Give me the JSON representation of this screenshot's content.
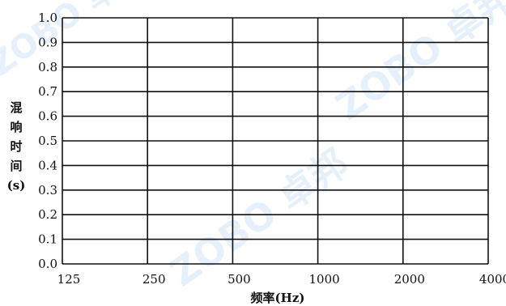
{
  "chart_data": {
    "type": "line",
    "title": "",
    "xlabel": "频率(Hz)",
    "ylabel": "混响时间(s)",
    "categories": [
      "125",
      "250",
      "500",
      "1000",
      "2000",
      "4000"
    ],
    "yticks": [
      "0.0",
      "0.1",
      "0.2",
      "0.3",
      "0.4",
      "0.5",
      "0.6",
      "0.7",
      "0.8",
      "0.9",
      "1.0"
    ],
    "ylim": [
      0,
      1.0
    ],
    "grid": true,
    "series": [],
    "colors": {
      "grid": "#111111",
      "text": "#111111",
      "watermark": "#cfe4f6"
    }
  },
  "watermark": {
    "text": "ZOBO 卓邦"
  }
}
